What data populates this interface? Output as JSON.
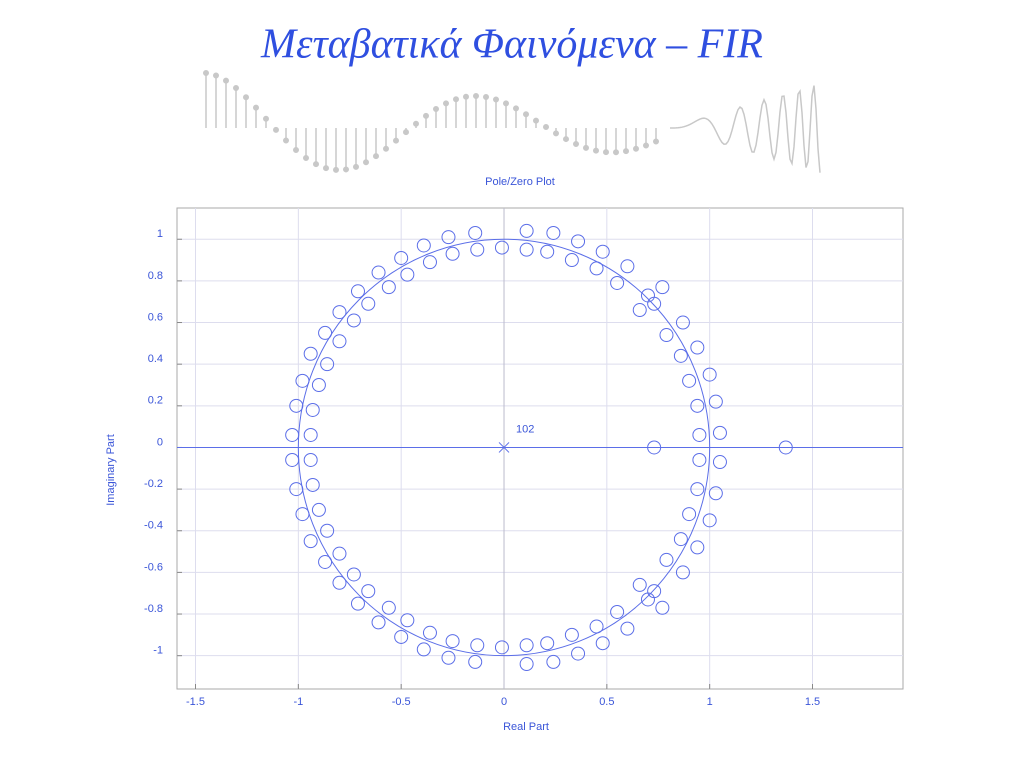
{
  "page_title": "Μεταβατικά Φαινόμενα – FIR",
  "chart_data": {
    "type": "scatter",
    "title": "Pole/Zero Plot",
    "xlabel": "Real Part",
    "ylabel": "Imaginary Part",
    "xlim": [
      -1.59,
      1.94
    ],
    "ylim": [
      -1.16,
      1.15
    ],
    "xticks": [
      -1.5,
      -1,
      -0.5,
      0,
      0.5,
      1,
      1.5
    ],
    "yticks": [
      -1,
      -0.8,
      -0.6,
      -0.4,
      -0.2,
      0,
      0.2,
      0.4,
      0.6,
      0.8,
      1
    ],
    "grid": true,
    "color": "#5b6ee8",
    "series": [
      {
        "name": "zeros",
        "marker": "circle",
        "x": [
          -0.14,
          -0.27,
          -0.39,
          -0.5,
          -0.61,
          -0.71,
          -0.8,
          -0.87,
          -0.94,
          -0.98,
          -1.01,
          -1.03,
          -0.01,
          -0.13,
          -0.25,
          -0.36,
          -0.47,
          -0.56,
          -0.66,
          -0.73,
          -0.8,
          -0.86,
          -0.9,
          -0.93,
          -0.94,
          0.11,
          0.24,
          0.36,
          0.48,
          0.6,
          0.7,
          0.77,
          0.87,
          0.94,
          1.0,
          1.03,
          1.05,
          0.11,
          0.21,
          0.33,
          0.45,
          0.55,
          0.73,
          0.66,
          0.79,
          0.86,
          0.9,
          0.94,
          0.95,
          -0.14,
          -0.27,
          -0.39,
          -0.5,
          -0.61,
          -0.71,
          -0.8,
          -0.87,
          -0.94,
          -0.98,
          -1.01,
          -1.03,
          -0.01,
          -0.13,
          -0.25,
          -0.36,
          -0.47,
          -0.56,
          -0.66,
          -0.73,
          -0.8,
          -0.86,
          -0.9,
          -0.93,
          -0.94,
          0.11,
          0.24,
          0.36,
          0.48,
          0.6,
          0.7,
          0.77,
          0.87,
          0.94,
          1.0,
          1.03,
          1.05,
          0.11,
          0.21,
          0.33,
          0.45,
          0.55,
          0.73,
          0.66,
          0.79,
          0.86,
          0.9,
          0.94,
          0.95,
          0.73,
          1.37
        ],
        "y": [
          1.03,
          1.01,
          0.97,
          0.91,
          0.84,
          0.75,
          0.65,
          0.55,
          0.45,
          0.32,
          0.2,
          0.06,
          0.96,
          0.95,
          0.93,
          0.89,
          0.83,
          0.77,
          0.69,
          0.61,
          0.51,
          0.4,
          0.3,
          0.18,
          0.06,
          1.04,
          1.03,
          0.99,
          0.94,
          0.87,
          0.73,
          0.77,
          0.6,
          0.48,
          0.35,
          0.22,
          0.07,
          0.95,
          0.94,
          0.9,
          0.86,
          0.79,
          0.69,
          0.66,
          0.54,
          0.44,
          0.32,
          0.2,
          0.06,
          -1.03,
          -1.01,
          -0.97,
          -0.91,
          -0.84,
          -0.75,
          -0.65,
          -0.55,
          -0.45,
          -0.32,
          -0.2,
          -0.06,
          -0.96,
          -0.95,
          -0.93,
          -0.89,
          -0.83,
          -0.77,
          -0.69,
          -0.61,
          -0.51,
          -0.4,
          -0.3,
          -0.18,
          -0.06,
          -1.04,
          -1.03,
          -0.99,
          -0.94,
          -0.87,
          -0.73,
          -0.77,
          -0.6,
          -0.48,
          -0.35,
          -0.22,
          -0.07,
          -0.95,
          -0.94,
          -0.9,
          -0.86,
          -0.79,
          -0.69,
          -0.66,
          -0.54,
          -0.44,
          -0.32,
          -0.2,
          -0.06,
          0,
          0
        ]
      },
      {
        "name": "poles",
        "marker": "x",
        "x": [
          0
        ],
        "y": [
          0
        ],
        "labels": [
          "102"
        ]
      }
    ]
  }
}
